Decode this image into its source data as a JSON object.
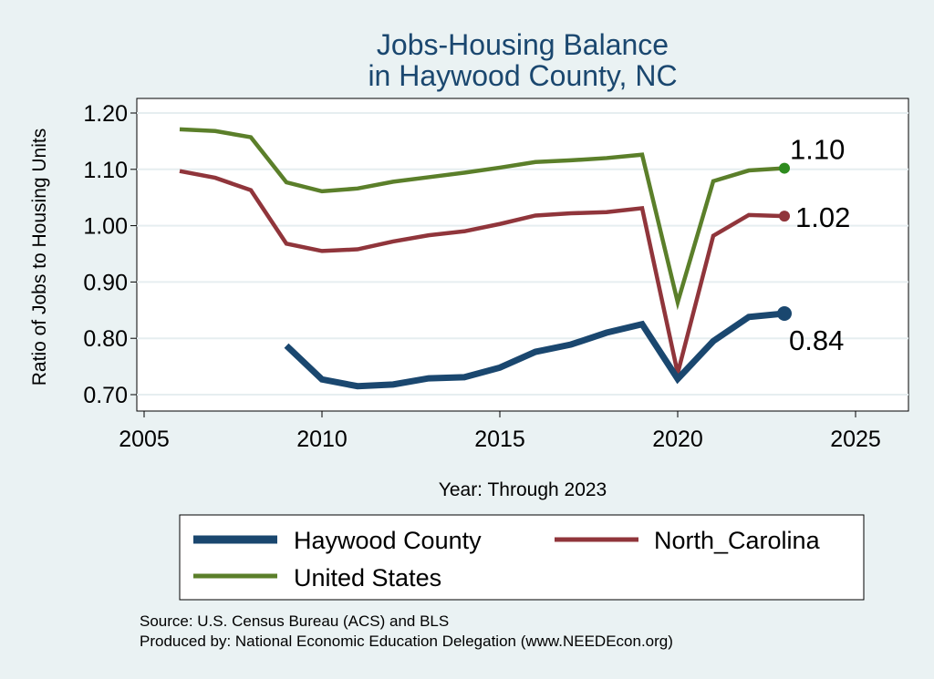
{
  "chart_data": {
    "type": "line",
    "title": [
      "Jobs-Housing Balance",
      "in Haywood County, NC"
    ],
    "xlabel": "Year: Through 2023",
    "ylabel": "Ratio of Jobs to Housing Units",
    "xlim": [
      2005,
      2027
    ],
    "ylim": [
      0.68,
      1.23
    ],
    "xticks": [
      2005,
      2010,
      2015,
      2020,
      2025
    ],
    "yticks": [
      0.7,
      0.8,
      0.9,
      1.0,
      1.1,
      1.2
    ],
    "ytick_labels": [
      "0.70",
      "0.80",
      "0.90",
      "1.00",
      "1.10",
      "1.20"
    ],
    "grid": "horizontal",
    "series": [
      {
        "name": "United States",
        "color": "#5b7f2a",
        "end_color": "#2e8b1e",
        "end_label": "1.10",
        "x": [
          2006,
          2007,
          2008,
          2009,
          2010,
          2011,
          2012,
          2013,
          2014,
          2015,
          2016,
          2017,
          2018,
          2019,
          2020,
          2021,
          2022,
          2023
        ],
        "values": [
          1.171,
          1.168,
          1.157,
          1.077,
          1.061,
          1.066,
          1.078,
          1.086,
          1.094,
          1.103,
          1.113,
          1.116,
          1.12,
          1.126,
          0.864,
          1.079,
          1.098,
          1.102
        ]
      },
      {
        "name": "North_Carolina",
        "color": "#90353b",
        "end_color": "#90353b",
        "end_label": "1.02",
        "x": [
          2006,
          2007,
          2008,
          2009,
          2010,
          2011,
          2012,
          2013,
          2014,
          2015,
          2016,
          2017,
          2018,
          2019,
          2020,
          2021,
          2022,
          2023
        ],
        "values": [
          1.097,
          1.085,
          1.063,
          0.968,
          0.955,
          0.958,
          0.972,
          0.983,
          0.99,
          1.003,
          1.018,
          1.022,
          1.024,
          1.031,
          0.738,
          0.982,
          1.019,
          1.017
        ]
      },
      {
        "name": "Haywood County",
        "color": "#1a476f",
        "end_color": "#1a476f",
        "end_label": "0.84",
        "x": [
          2009,
          2010,
          2011,
          2012,
          2013,
          2014,
          2015,
          2016,
          2017,
          2018,
          2019,
          2020,
          2021,
          2022,
          2023
        ],
        "values": [
          0.787,
          0.727,
          0.715,
          0.718,
          0.729,
          0.731,
          0.748,
          0.776,
          0.789,
          0.81,
          0.825,
          0.728,
          0.795,
          0.838,
          0.844
        ]
      }
    ],
    "legend": {
      "placement": "bottom",
      "entries": [
        "Haywood County",
        "North_Carolina",
        "United States"
      ]
    }
  },
  "notes": {
    "source": "Source: U.S. Census Bureau (ACS) and BLS",
    "produced_by": "Produced by: National Economic Education Delegation (www.NEEDEcon.org)"
  }
}
